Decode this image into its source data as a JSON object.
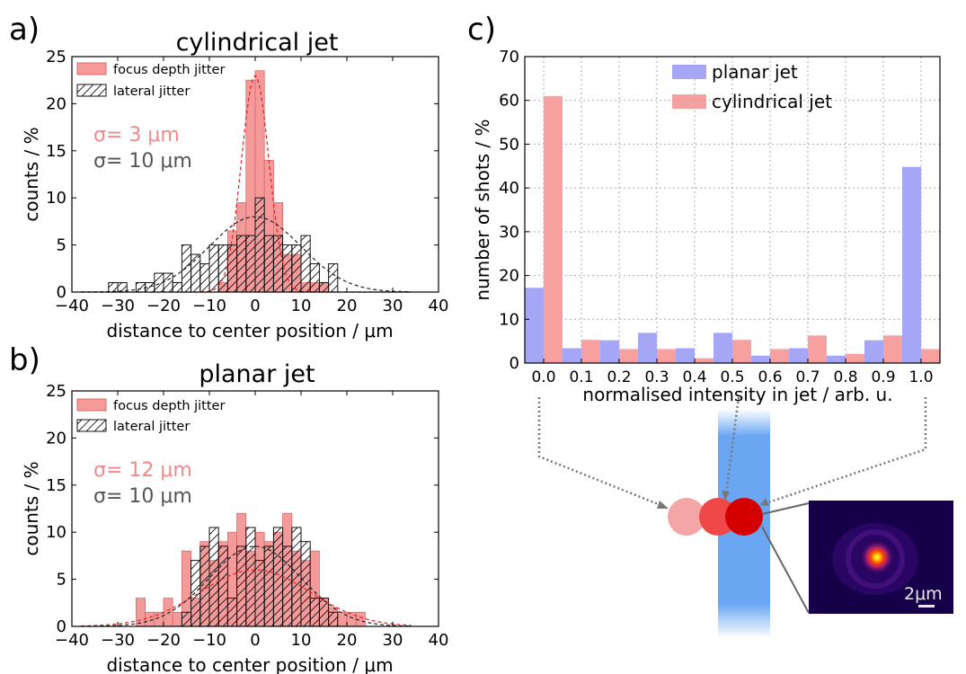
{
  "colors": {
    "focus": "#f49a9a",
    "focus_edge": "#d86a6a",
    "planar": "#a6a6f6",
    "cyl": "#f7a0a0",
    "grid": "#aaaaaa",
    "jet": "#6aa6f2",
    "spot1": "#f4a6a6",
    "spot2": "#f04848",
    "spot3": "#d40000"
  },
  "panels": {
    "a": {
      "letter": "a)",
      "title": "cylindrical jet",
      "sigma_focus": "σ= 3 μm",
      "sigma_lateral": "σ= 10 μm",
      "legend": [
        "focus depth jitter",
        "lateral jitter"
      ]
    },
    "b": {
      "letter": "b)",
      "title": "planar jet",
      "sigma_focus": "σ= 12 μm",
      "sigma_lateral": "σ= 10 μm",
      "legend": [
        "focus depth jitter",
        "lateral jitter"
      ]
    },
    "c": {
      "letter": "c)",
      "legend": [
        "planar jet",
        "cylindrical jet"
      ]
    }
  },
  "inset": {
    "scale_label": "2μm"
  },
  "chart_data": [
    {
      "type": "bar",
      "panel": "a",
      "title": "cylindrical jet",
      "xlabel": "distance to center position / μm",
      "ylabel": "counts / %",
      "xlim": [
        -40,
        40
      ],
      "ylim": [
        0,
        25
      ],
      "xticks": [
        -40,
        -30,
        -20,
        -10,
        0,
        10,
        20,
        30,
        40
      ],
      "yticks": [
        0,
        5,
        10,
        15,
        20,
        25
      ],
      "bin_width": 2,
      "series": [
        {
          "name": "focus depth jitter",
          "style": "filled",
          "bin_centers": [
            -7,
            -5,
            -3,
            -1,
            1,
            3,
            5,
            7,
            9,
            11,
            13,
            15
          ],
          "values": [
            1.0,
            6.5,
            9.5,
            22.5,
            23.5,
            14.0,
            9.5,
            4.0,
            4.0,
            1.0,
            1.0,
            1.0
          ],
          "fit": {
            "mu": 0,
            "sigma": 3,
            "peak": 23
          }
        },
        {
          "name": "lateral jitter",
          "style": "hatched",
          "bin_centers": [
            -31,
            -29,
            -25,
            -23,
            -21,
            -19,
            -17,
            -15,
            -13,
            -11,
            -9,
            -7,
            -5,
            -3,
            -1,
            1,
            3,
            5,
            7,
            9,
            11,
            13,
            15,
            17
          ],
          "values": [
            1.0,
            1.0,
            1.0,
            1.0,
            2.0,
            2.0,
            1.0,
            5.0,
            4.0,
            3.0,
            5.0,
            5.0,
            5.0,
            6.0,
            6.0,
            10.0,
            6.0,
            6.0,
            5.0,
            5.0,
            6.0,
            3.0,
            1.0,
            3.0
          ],
          "fit": {
            "mu": 0,
            "sigma": 10,
            "peak": 8
          }
        }
      ]
    },
    {
      "type": "bar",
      "panel": "b",
      "title": "planar jet",
      "xlabel": "distance to center position / μm",
      "ylabel": "counts / %",
      "xlim": [
        -40,
        40
      ],
      "ylim": [
        0,
        25
      ],
      "xticks": [
        -40,
        -30,
        -20,
        -10,
        0,
        10,
        20,
        30,
        40
      ],
      "yticks": [
        0,
        5,
        10,
        15,
        20,
        25
      ],
      "bin_width": 2,
      "series": [
        {
          "name": "focus depth jitter",
          "style": "filled",
          "bin_centers": [
            -25,
            -23,
            -21,
            -19,
            -17,
            -15,
            -13,
            -11,
            -9,
            -7,
            -5,
            -3,
            -1,
            1,
            3,
            5,
            7,
            9,
            11,
            13,
            15,
            17,
            19,
            21,
            23
          ],
          "values": [
            3.0,
            1.5,
            1.5,
            3.0,
            1.5,
            8.0,
            3.0,
            9.0,
            7.0,
            9.0,
            10.0,
            12.0,
            8.0,
            10.0,
            9.0,
            10.0,
            12.0,
            8.0,
            7.0,
            8.0,
            3.0,
            2.0,
            1.5,
            1.5,
            1.5
          ],
          "fit": {
            "mu": 0,
            "sigma": 12,
            "peak": 6
          }
        },
        {
          "name": "lateral jitter",
          "style": "hatched",
          "bin_centers": [
            -15,
            -13,
            -11,
            -9,
            -7,
            -5,
            -3,
            -1,
            1,
            3,
            5,
            7,
            9,
            11,
            13,
            15,
            17
          ],
          "values": [
            1.5,
            7.0,
            8.5,
            10.5,
            8.5,
            3.0,
            8.5,
            10.5,
            7.0,
            8.5,
            10.5,
            8.5,
            10.5,
            9.0,
            3.0,
            3.0,
            1.5
          ],
          "fit": {
            "mu": 0,
            "sigma": 10,
            "peak": 8.5
          }
        }
      ]
    },
    {
      "type": "bar",
      "panel": "c",
      "xlabel": "normalised intensity in jet / arb. u.",
      "ylabel": "number of shots / %",
      "ylim": [
        0,
        70
      ],
      "yticks": [
        0,
        10,
        20,
        30,
        40,
        50,
        60,
        70
      ],
      "categories": [
        "0.0",
        "0.1",
        "0.2",
        "0.3",
        "0.4",
        "0.5",
        "0.6",
        "0.7",
        "0.8",
        "0.9",
        "1.0"
      ],
      "grid": true,
      "legend_position": "top-right",
      "series": [
        {
          "name": "planar jet",
          "values": [
            17.2,
            3.4,
            5.2,
            6.9,
            3.4,
            6.9,
            1.7,
            3.4,
            1.7,
            5.2,
            44.8
          ]
        },
        {
          "name": "cylindrical jet",
          "values": [
            61.0,
            5.3,
            3.2,
            3.2,
            1.1,
            5.3,
            3.2,
            6.3,
            2.1,
            6.3,
            3.2
          ]
        }
      ]
    }
  ]
}
